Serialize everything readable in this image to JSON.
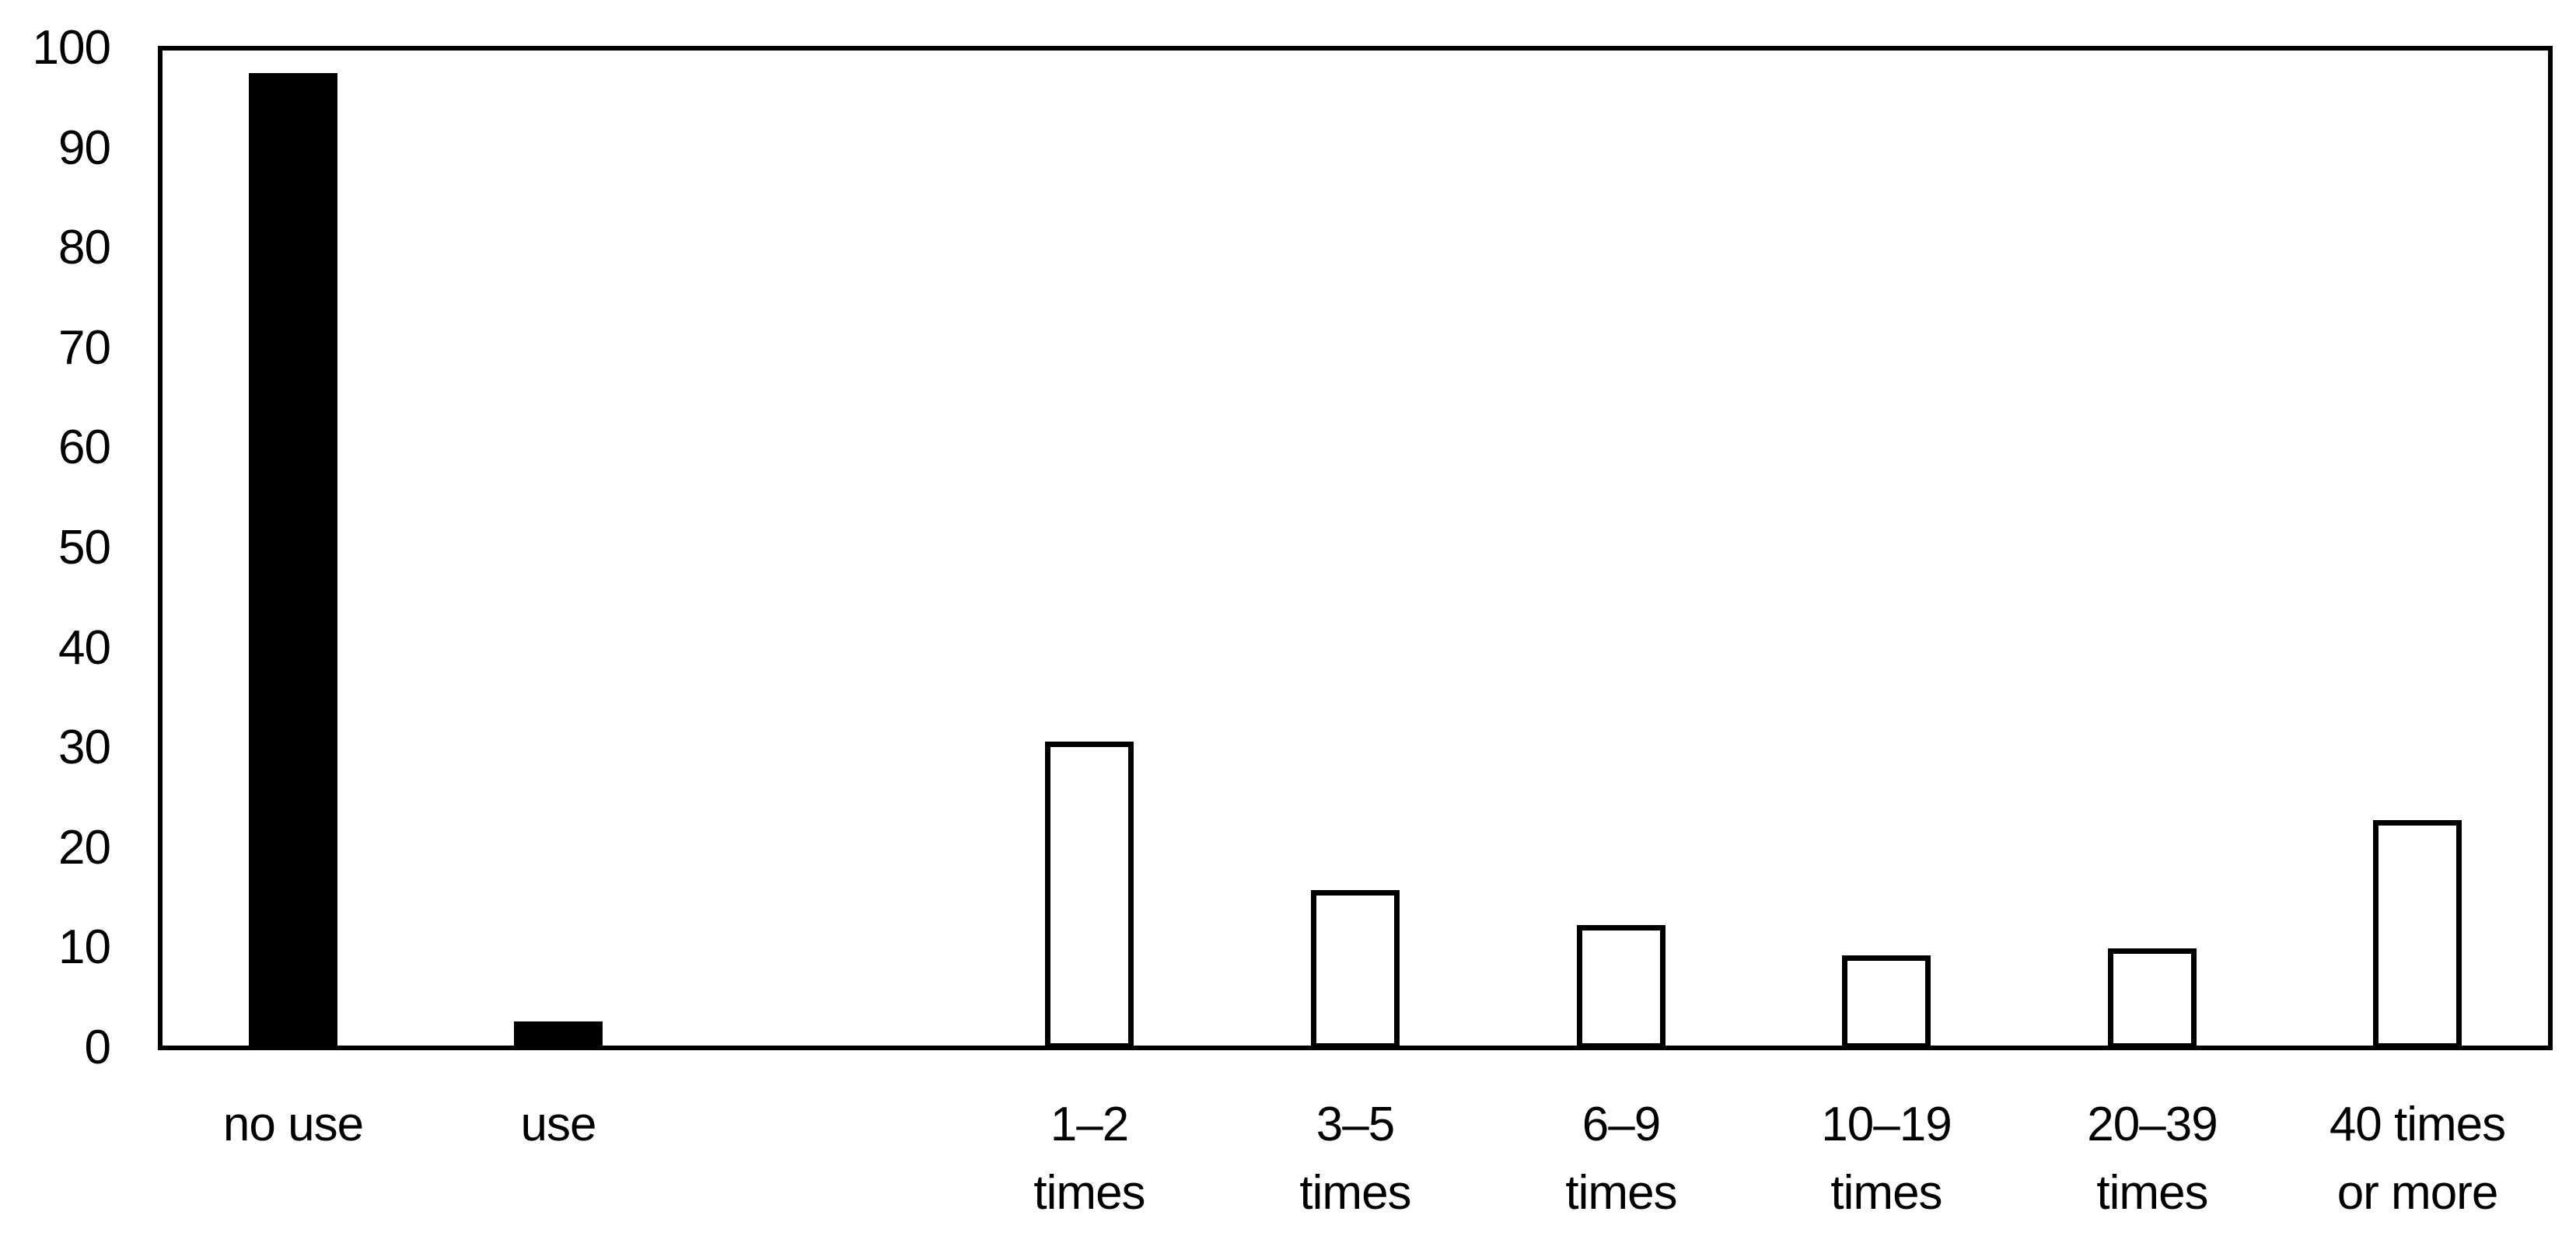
{
  "chart_data": {
    "type": "bar",
    "orientation": "vertical",
    "title": "",
    "xlabel": "",
    "ylabel": "",
    "grid": false,
    "legend": null,
    "y_axis": {
      "min": 0,
      "max": 100,
      "tick_step": 10,
      "tick_labels": [
        "0",
        "10",
        "20",
        "30",
        "40",
        "50",
        "60",
        "70",
        "80",
        "90",
        "100"
      ]
    },
    "total_category_slots": 9,
    "categories": [
      {
        "label_lines": [
          "no use"
        ],
        "value": 97.6,
        "style": "solid-black",
        "slot": 0
      },
      {
        "label_lines": [
          "use"
        ],
        "value": 2.7,
        "style": "solid-black",
        "slot": 1
      },
      {
        "label_lines": [
          "1–2",
          "times"
        ],
        "value": 30.7,
        "style": "white-outlined",
        "slot": 3
      },
      {
        "label_lines": [
          "3–5",
          "times"
        ],
        "value": 15.9,
        "style": "white-outlined",
        "slot": 4
      },
      {
        "label_lines": [
          "6–9",
          "times"
        ],
        "value": 12.4,
        "style": "white-outlined",
        "slot": 5
      },
      {
        "label_lines": [
          "10–19",
          "times"
        ],
        "value": 9.3,
        "style": "white-outlined",
        "slot": 6
      },
      {
        "label_lines": [
          "20–39",
          "times"
        ],
        "value": 10.0,
        "style": "white-outlined",
        "slot": 7
      },
      {
        "label_lines": [
          "40 times",
          "or more"
        ],
        "value": 22.9,
        "style": "white-outlined",
        "slot": 8
      }
    ],
    "colors": {
      "bar_fill_dark": "#000000",
      "bar_fill_light": "#ffffff",
      "bar_outline": "#000000",
      "axis": "#000000",
      "background": "#ffffff",
      "text": "#000000"
    }
  }
}
